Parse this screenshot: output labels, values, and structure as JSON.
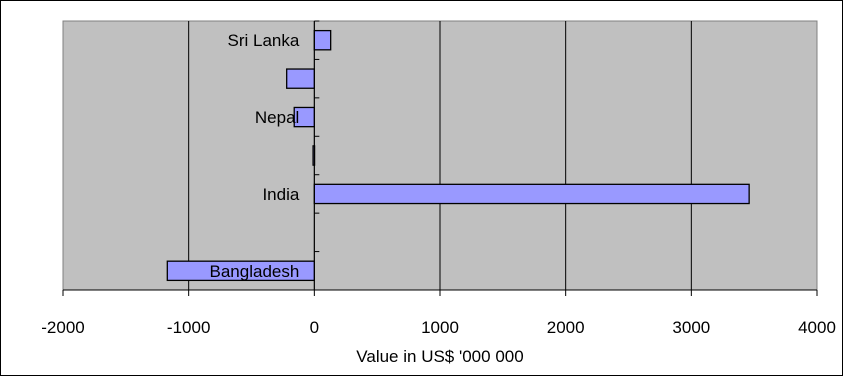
{
  "chart_data": {
    "type": "bar",
    "orientation": "horizontal",
    "categories": [
      "Bangladesh",
      "",
      "India",
      "",
      "Nepal",
      "",
      "Sri Lanka"
    ],
    "values": [
      -1170,
      null,
      3460,
      -10,
      -160,
      -220,
      130
    ],
    "xlabel": "Value in US$ '000 000",
    "ylabel": "",
    "xlim": [
      -2000,
      4000
    ],
    "xticks": [
      "-2000",
      "-1000",
      "0",
      "1000",
      "2000",
      "3000",
      "4000"
    ],
    "grid": "vertical",
    "legend": "none",
    "colors": {
      "plot_background": "#c0c0c0",
      "bar_fill": "#9999ff",
      "bar_stroke": "#000000",
      "gridline": "#000000"
    }
  }
}
